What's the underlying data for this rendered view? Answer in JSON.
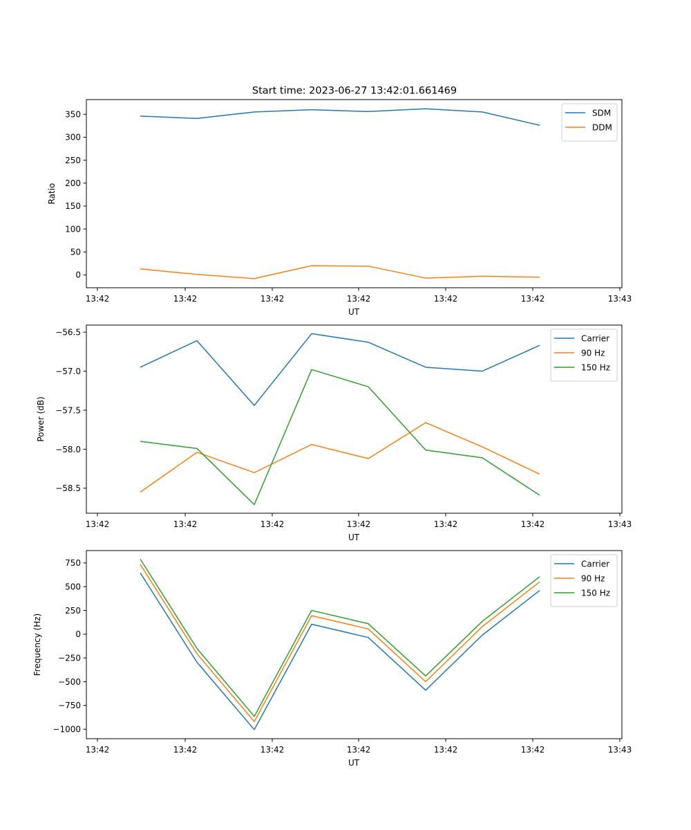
{
  "figure": {
    "title": "Start time: 2023-06-27 13:42:01.661469"
  },
  "chart_data": [
    {
      "type": "line",
      "xlabel": "UT",
      "ylabel": "Ratio",
      "x_tick_labels": [
        "13:42",
        "13:42",
        "13:42",
        "13:42",
        "13:42",
        "13:42",
        "13:43"
      ],
      "ylim": [
        -28,
        382
      ],
      "y_ticks": [
        0,
        50,
        100,
        150,
        200,
        250,
        300,
        350
      ],
      "y_tick_labels": [
        "0",
        "50",
        "100",
        "150",
        "200",
        "250",
        "300",
        "350"
      ],
      "legend_position": "upper right",
      "series": [
        {
          "name": "SDM",
          "color": "#1f77b4",
          "values": [
            346,
            341,
            355,
            360,
            356,
            362,
            355,
            326
          ]
        },
        {
          "name": "DDM",
          "color": "#ff7f0e",
          "values": [
            13,
            1,
            -8,
            20,
            19,
            -7,
            -3,
            -5
          ]
        }
      ]
    },
    {
      "type": "line",
      "xlabel": "UT",
      "ylabel": "Power (dB)",
      "x_tick_labels": [
        "13:42",
        "13:42",
        "13:42",
        "13:42",
        "13:42",
        "13:42",
        "13:43"
      ],
      "ylim": [
        -58.82,
        -56.41
      ],
      "y_ticks": [
        -58.5,
        -58.0,
        -57.5,
        -57.0,
        -56.5
      ],
      "y_tick_labels": [
        "−58.5",
        "−58.0",
        "−57.5",
        "−57.0",
        "−56.5"
      ],
      "legend_position": "upper right",
      "series": [
        {
          "name": "Carrier",
          "color": "#1f77b4",
          "values": [
            -56.95,
            -56.61,
            -57.44,
            -56.52,
            -56.63,
            -56.95,
            -57.0,
            -56.67
          ]
        },
        {
          "name": "90 Hz",
          "color": "#ff7f0e",
          "values": [
            -58.55,
            -58.04,
            -58.3,
            -57.94,
            -58.12,
            -57.66,
            -57.97,
            -58.32
          ]
        },
        {
          "name": "150 Hz",
          "color": "#2ca02c",
          "values": [
            -57.9,
            -57.99,
            -58.71,
            -56.98,
            -57.2,
            -58.01,
            -58.11,
            -58.59
          ]
        }
      ]
    },
    {
      "type": "line",
      "xlabel": "UT",
      "ylabel": "Frequency (Hz)",
      "x_tick_labels": [
        "13:42",
        "13:42",
        "13:42",
        "13:42",
        "13:42",
        "13:42",
        "13:43"
      ],
      "ylim": [
        -1100,
        880
      ],
      "y_ticks": [
        -1000,
        -750,
        -500,
        -250,
        0,
        250,
        500,
        750
      ],
      "y_tick_labels": [
        "−1000",
        "−750",
        "−500",
        "−250",
        "0",
        "250",
        "500",
        "750"
      ],
      "legend_position": "upper right",
      "series": [
        {
          "name": "Carrier",
          "color": "#1f77b4",
          "values": [
            645,
            -295,
            -1005,
            105,
            -35,
            -590,
            -10,
            460
          ]
        },
        {
          "name": "90 Hz",
          "color": "#ff7f0e",
          "values": [
            735,
            -205,
            -920,
            195,
            55,
            -500,
            80,
            550
          ]
        },
        {
          "name": "150 Hz",
          "color": "#2ca02c",
          "values": [
            790,
            -150,
            -865,
            250,
            110,
            -440,
            135,
            605
          ]
        }
      ]
    }
  ]
}
